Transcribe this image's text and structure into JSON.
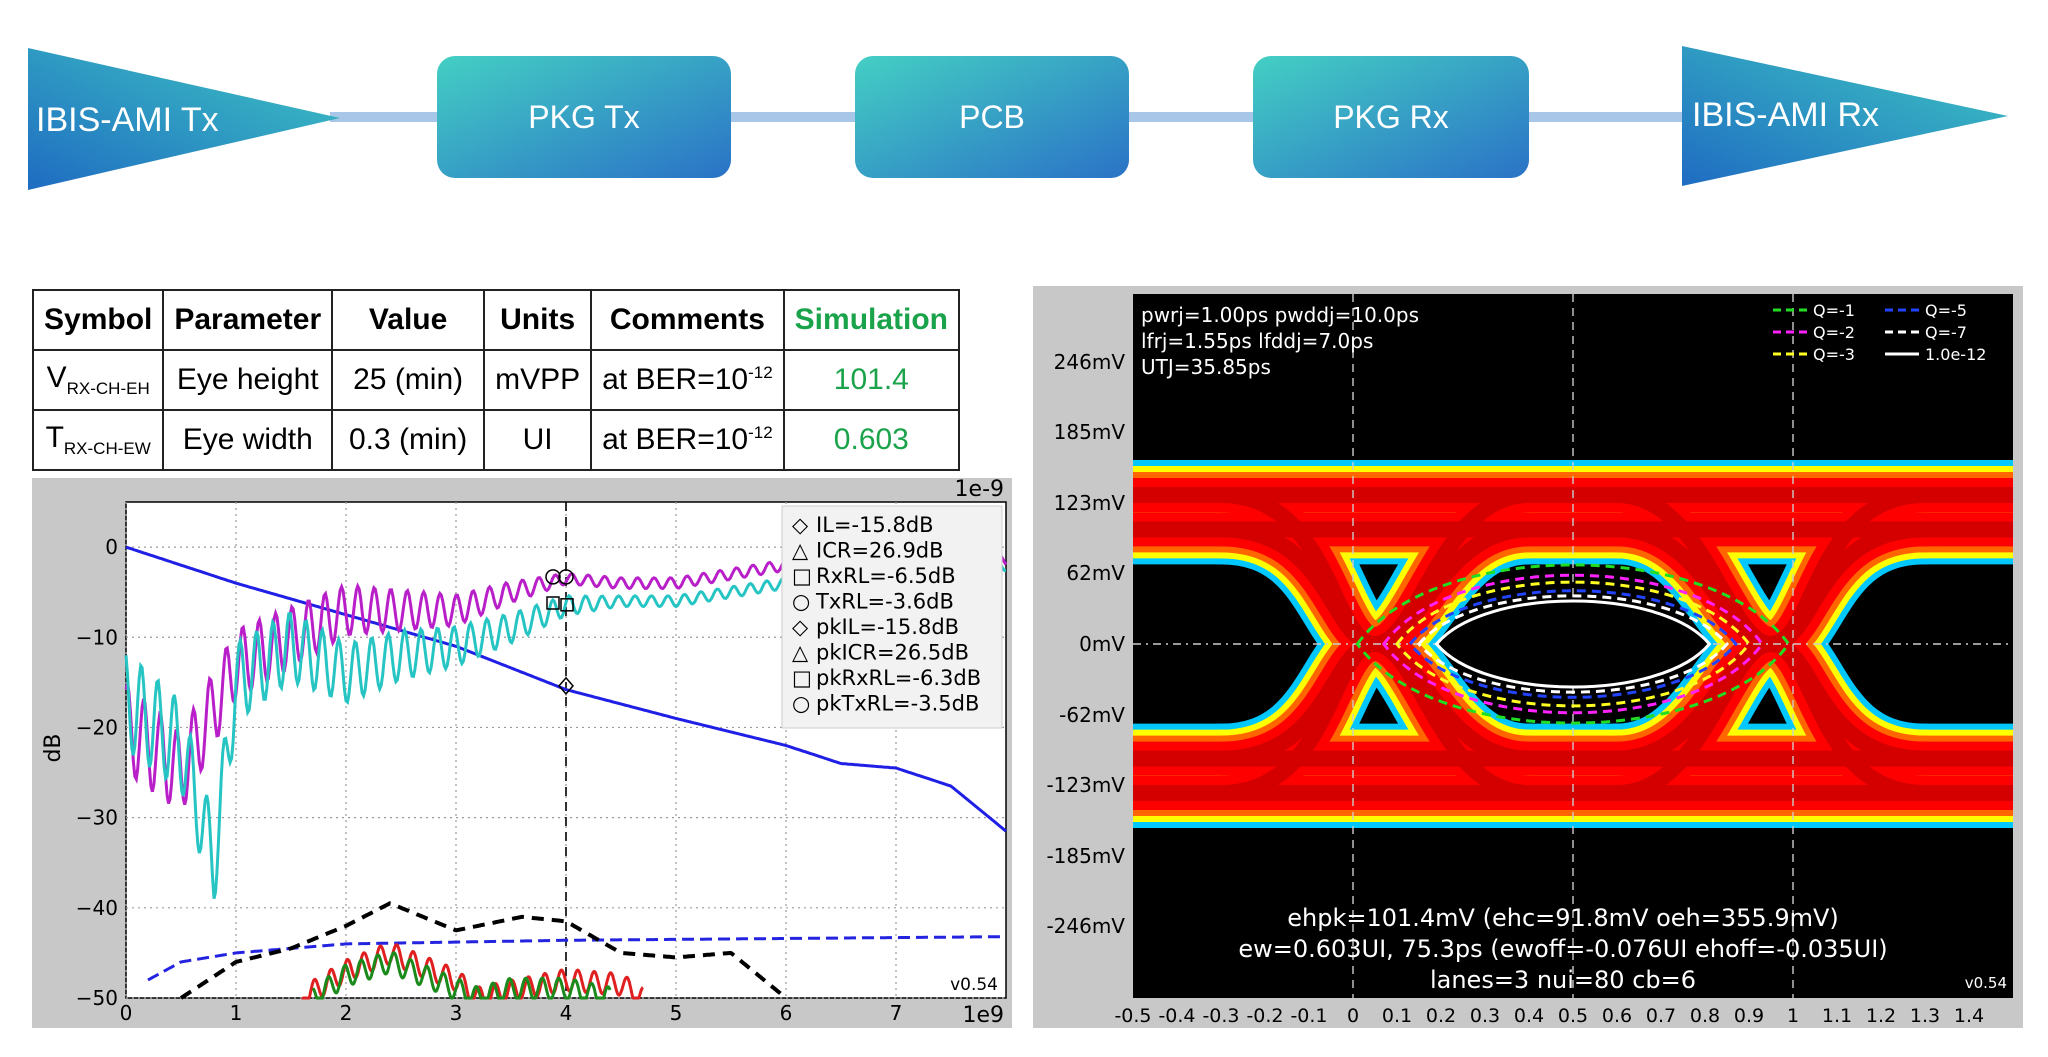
{
  "flow": {
    "blocks": [
      "IBIS-AMI Tx",
      "PKG Tx",
      "PCB",
      "PKG Rx",
      "IBIS-AMI Rx"
    ],
    "colors": {
      "teal": "#3ec8c0",
      "blue": "#2a6fc4",
      "line": "#a7c6e8"
    }
  },
  "table": {
    "headers": [
      "Symbol",
      "Parameter",
      "Value",
      "Units",
      "Comments",
      "Simulation"
    ],
    "rows": [
      {
        "symbol": "V",
        "symbol_sub": "RX-CH-EH",
        "parameter": "Eye height",
        "value": "25 (min)",
        "units": "mVPP",
        "comment": "at BER=10",
        "comment_sup": "-12",
        "simulation": "101.4"
      },
      {
        "symbol": "T",
        "symbol_sub": "RX-CH-EW",
        "parameter": "Eye width",
        "value": "0.3 (min)",
        "units": "UI",
        "comment": "at BER=10",
        "comment_sup": "-12",
        "simulation": "0.603"
      }
    ],
    "sim_color": "#1aa34a"
  },
  "chart_data": [
    {
      "type": "line",
      "ylabel": "dB",
      "x_scale_label": "1e9",
      "y_scale_label": "1e-9",
      "xlim": [
        0,
        8
      ],
      "ylim": [
        -50,
        5
      ],
      "x_ticks": [
        "0",
        "1",
        "2",
        "3",
        "4",
        "5",
        "6",
        "7"
      ],
      "y_ticks": [
        "0",
        "−10",
        "−20",
        "−30",
        "−40",
        "−50"
      ],
      "marker_x": 4,
      "legend": [
        "IL=-15.8dB",
        "ICR=26.9dB",
        "RxRL=-6.5dB",
        "TxRL=-3.6dB",
        "pkIL=-15.8dB",
        "pkICR=26.5dB",
        "pkRxRL=-6.3dB",
        "pkTxRL=-3.5dB"
      ],
      "legend_symbols": [
        "◇",
        "△",
        "□",
        "○",
        "◇",
        "△",
        "□",
        "○"
      ],
      "version": "v0.54",
      "series": [
        {
          "color": "#1f1fe6",
          "style": "solid",
          "x": [
            0,
            0.5,
            1,
            2,
            3,
            4,
            5,
            6,
            6.5,
            7,
            7.5,
            8
          ],
          "y": [
            0,
            -2,
            -4,
            -7.5,
            -11,
            -15.8,
            -19,
            -22,
            -24,
            -24.5,
            -26.5,
            -31.5
          ]
        },
        {
          "color": "#b81fc8",
          "style": "ripple",
          "x": [
            0,
            0.5,
            1,
            1.5,
            2,
            2.5,
            3,
            3.5,
            4,
            4.5,
            5,
            5.5,
            6,
            7,
            8
          ],
          "y": [
            -20,
            -25,
            -13,
            -10,
            -7,
            -7,
            -7,
            -5,
            -3.5,
            -4,
            -4,
            -3,
            -2,
            -2,
            -1.5
          ]
        },
        {
          "color": "#27c4c4",
          "style": "ripple",
          "x": [
            0,
            0.5,
            0.8,
            1,
            1.5,
            2,
            2.5,
            3,
            3.5,
            4,
            4.5,
            5,
            5.5,
            6,
            7,
            8
          ],
          "y": [
            -17,
            -22,
            -35,
            -15,
            -11,
            -14,
            -12,
            -11,
            -9,
            -6.5,
            -6,
            -6,
            -5,
            -4,
            -3,
            -2
          ]
        },
        {
          "color": "#2323e0",
          "style": "dashed",
          "x": [
            0.2,
            0.5,
            1,
            2,
            3,
            4,
            5,
            6,
            7,
            8
          ],
          "y": [
            -48,
            -46,
            -45,
            -44,
            -43.8,
            -43.6,
            -43.5,
            -43.4,
            -43.3,
            -43.2
          ]
        },
        {
          "color": "#000000",
          "style": "thickdash",
          "x": [
            0.5,
            1,
            1.5,
            2,
            2.4,
            3,
            3.6,
            4,
            4.5,
            5,
            5.5,
            6
          ],
          "y": [
            -50,
            -46,
            -44.5,
            -42,
            -39.5,
            -42.5,
            -41,
            -41.5,
            -45,
            -45.5,
            -45,
            -50
          ]
        },
        {
          "color": "#e02020",
          "style": "ripple",
          "x": [
            1.6,
            2,
            2.4,
            3,
            3.2,
            4,
            4.5,
            4.7
          ],
          "y": [
            -50,
            -47,
            -45,
            -48,
            -50,
            -48,
            -48.5,
            -50
          ]
        },
        {
          "color": "#1a8a1a",
          "style": "ripple",
          "x": [
            1.7,
            2,
            2.4,
            3,
            3.2,
            3.5,
            4,
            4.4
          ],
          "y": [
            -50,
            -47.5,
            -46,
            -49,
            -50,
            -49,
            -49,
            -50
          ]
        }
      ]
    },
    {
      "type": "heatmap",
      "xlim": [
        -0.5,
        1.5
      ],
      "x_ticks": [
        "-0.5",
        "-0.4",
        "-0.3",
        "-0.2",
        "-0.1",
        "0",
        "0.1",
        "0.2",
        "0.3",
        "0.4",
        "0.5",
        "0.6",
        "0.7",
        "0.8",
        "0.9",
        "1",
        "1.1",
        "1.2",
        "1.3",
        "1.4"
      ],
      "y_ticks": [
        "246mV",
        "185mV",
        "123mV",
        "62mV",
        "0mV",
        "-62mV",
        "-123mV",
        "-185mV",
        "-246mV"
      ],
      "y_values_mV": [
        246,
        185,
        123,
        62,
        0,
        -62,
        -123,
        -185,
        -246
      ],
      "info_lines": [
        "pwrj=1.00ps pwddj=10.0ps",
        "lfrj=1.55ps lfddj=7.0ps",
        "UTJ=35.85ps"
      ],
      "legend": [
        {
          "label": "Q=-1",
          "color": "#22dd22",
          "style": "dashed"
        },
        {
          "label": "Q=-5",
          "color": "#2244ff",
          "style": "dashed"
        },
        {
          "label": "Q=-2",
          "color": "#ff22ff",
          "style": "dashed"
        },
        {
          "label": "Q=-7",
          "color": "#ffffff",
          "style": "dashed"
        },
        {
          "label": "Q=-3",
          "color": "#ffff22",
          "style": "dashed"
        },
        {
          "label": "1.0e-12",
          "color": "#ffffff",
          "style": "solid"
        }
      ],
      "contours_half_height_mV": [
        {
          "q": "Q=-1",
          "h": 92,
          "w": 0.98
        },
        {
          "q": "Q=-2",
          "h": 80,
          "w": 0.86
        },
        {
          "q": "Q=-3",
          "h": 72,
          "w": 0.8
        },
        {
          "q": "Q=-5",
          "h": 62,
          "w": 0.74
        },
        {
          "q": "Q=-7",
          "h": 56,
          "w": 0.7
        },
        {
          "q": "1.0e-12",
          "h": 50,
          "w": 0.62
        }
      ],
      "summary_lines": [
        "ehpk=101.4mV (ehc=91.8mV oeh=355.9mV)",
        "ew=0.603UI, 75.3ps (ewoff=-0.076UI ehoff=-0.035UI)",
        "lanes=3 nui=80 cb=6"
      ],
      "version": "v0.54"
    }
  ]
}
